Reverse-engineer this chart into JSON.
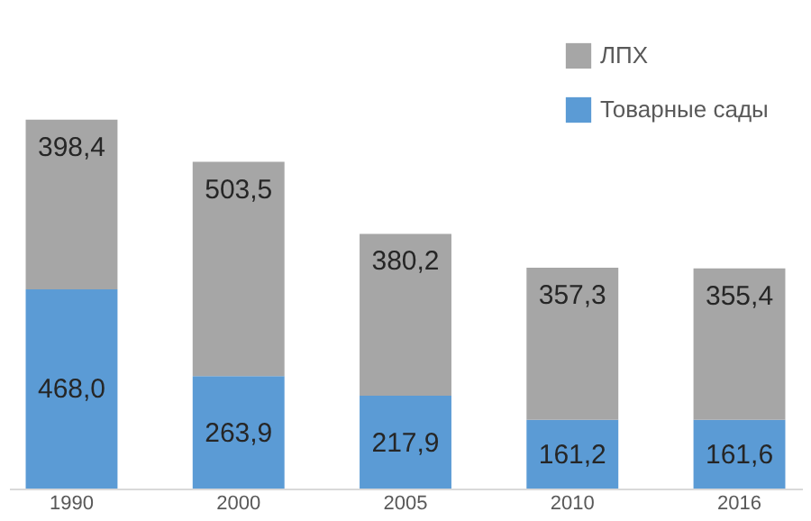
{
  "chart_data": {
    "type": "bar",
    "stacked": true,
    "categories": [
      "1990",
      "2000",
      "2005",
      "2010",
      "2016"
    ],
    "series": [
      {
        "name": "Товарные сады",
        "color": "#5b9bd5",
        "values": [
          468.0,
          263.9,
          217.9,
          161.2,
          161.6
        ],
        "value_labels": [
          "468,0",
          "263,9",
          "217,9",
          "161,2",
          "161,6"
        ]
      },
      {
        "name": "ЛПХ",
        "color": "#a6a6a6",
        "values": [
          398.4,
          503.5,
          380.2,
          357.3,
          355.4
        ],
        "value_labels": [
          "398,4",
          "503,5",
          "380,2",
          "357,3",
          "355,4"
        ]
      }
    ],
    "legend": "top right",
    "grid": false,
    "tick_labels": "x"
  }
}
